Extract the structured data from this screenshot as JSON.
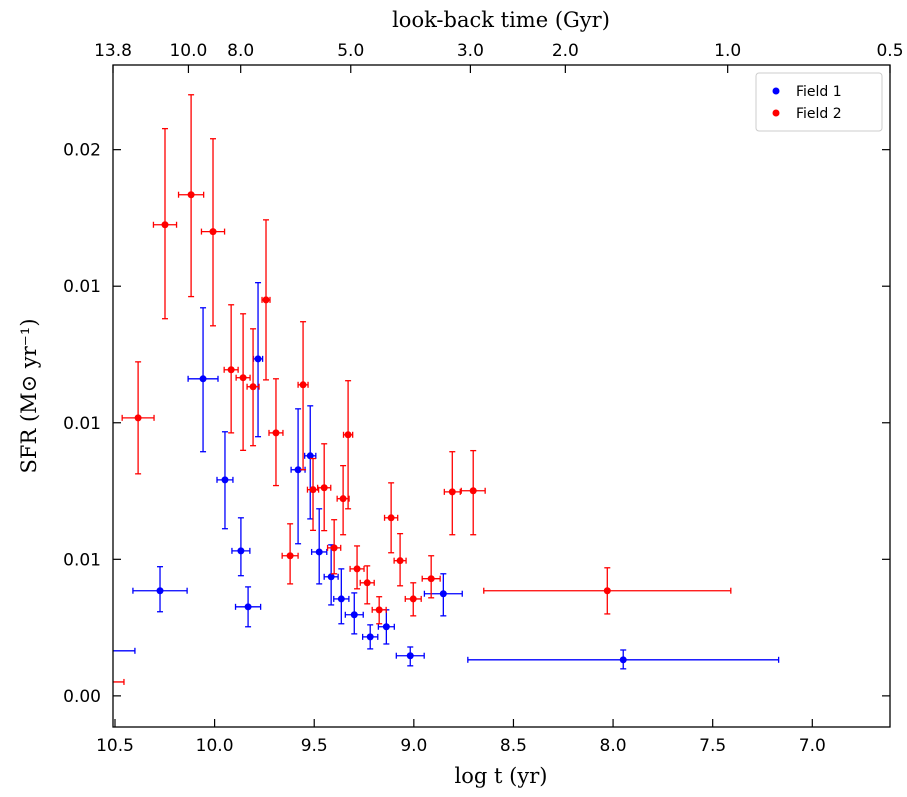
{
  "chart_data": {
    "type": "errorbar",
    "xlabel": "log t (yr)",
    "ylabel": "SFR (M⊙ yr⁻¹)",
    "x2label": "look-back time (Gyr)",
    "xlim": [
      10.51,
      6.61
    ],
    "ylim": [
      -0.00114,
      0.0231
    ],
    "xticks": [
      10.5,
      {
        "value": 10,
        "label": "10.0"
      },
      9.5,
      {
        "value": 9,
        "label": "9.0"
      },
      8.5,
      {
        "value": 8,
        "label": "8.0"
      },
      7.5,
      {
        "value": 7,
        "label": "7.0"
      }
    ],
    "yticks": [
      {
        "value": 0,
        "label": "0.00"
      },
      {
        "value": 0.005,
        "label": "0.01"
      },
      {
        "value": 0.01,
        "label": "0.01"
      },
      {
        "value": 0.015,
        "label": "0.01"
      },
      {
        "value": 0.02,
        "label": "0.02"
      }
    ],
    "x2lim": [
      13.8,
      0.5
    ],
    "x2scale": "log",
    "x2ticks": [
      13.8,
      {
        "value": 10,
        "label": "10.0"
      },
      {
        "value": 8,
        "label": "8.0"
      },
      {
        "value": 5,
        "label": "5.0"
      },
      {
        "value": 3,
        "label": "3.0"
      },
      {
        "value": 2,
        "label": "2.0"
      },
      {
        "value": 1,
        "label": "1.0"
      },
      0.5
    ],
    "legend": "upper right",
    "series": [
      {
        "name": "Field 1",
        "color": "#0000ff",
        "x": [
          10.56,
          10.274,
          10.058,
          9.948,
          9.868,
          9.832,
          9.782,
          9.581,
          9.52,
          9.475,
          9.415,
          9.364,
          9.299,
          9.219,
          9.138,
          9.018,
          8.852,
          7.949
        ],
        "values": [
          0.00165,
          0.00385,
          0.01161,
          0.00791,
          0.00531,
          0.00326,
          0.01234,
          0.00828,
          0.00879,
          0.00527,
          0.00436,
          0.00355,
          0.00297,
          0.00216,
          0.00253,
          0.00147,
          0.00374,
          0.00132
        ],
        "xerr": [
          0.16,
          0.136,
          0.075,
          0.04,
          0.045,
          0.063,
          0.023,
          0.035,
          0.028,
          0.038,
          0.035,
          0.038,
          0.045,
          0.038,
          0.04,
          0.07,
          0.095,
          0.78
        ],
        "yerr": [
          [
            0,
            0
          ],
          [
            0.00077,
            0.00088
          ],
          [
            0.00267,
            0.0026
          ],
          [
            0.00179,
            0.00176
          ],
          [
            0.00091,
            0.00121
          ],
          [
            0.00073,
            0.00073
          ],
          [
            0.00285,
            0.00279
          ],
          [
            0.00271,
            0.00223
          ],
          [
            0.00231,
            0.00183
          ],
          [
            0.00117,
            0.00158
          ],
          [
            0.00103,
            0.00117
          ],
          [
            0.00091,
            0.0011
          ],
          [
            0.0007,
            0.0008
          ],
          [
            0.00044,
            0.00044
          ],
          [
            0.00063,
            0.00062
          ],
          [
            0.00037,
            0.00032
          ],
          [
            0.00081,
            0.00073
          ],
          [
            0.00033,
            0.00036
          ]
        ]
      },
      {
        "name": "Field 2",
        "color": "#ff0000",
        "x": [
          10.53,
          10.384,
          10.249,
          10.118,
          10.008,
          9.917,
          9.857,
          9.807,
          9.742,
          9.692,
          9.621,
          9.556,
          9.506,
          9.45,
          9.4,
          9.355,
          9.33,
          9.285,
          9.234,
          9.174,
          9.114,
          9.069,
          9.003,
          8.913,
          8.807,
          8.702,
          8.029
        ],
        "values": [
          0.00051,
          0.01018,
          0.01725,
          0.01835,
          0.017,
          0.01194,
          0.01165,
          0.01132,
          0.0145,
          0.00963,
          0.00513,
          0.01139,
          0.00755,
          0.00762,
          0.00542,
          0.00722,
          0.00956,
          0.00465,
          0.00414,
          0.00315,
          0.00652,
          0.00495,
          0.00355,
          0.00429,
          0.00747,
          0.00751,
          0.00385
        ],
        "xerr": [
          0.075,
          0.08,
          0.058,
          0.063,
          0.058,
          0.035,
          0.035,
          0.03,
          0.02,
          0.035,
          0.04,
          0.025,
          0.028,
          0.033,
          0.033,
          0.03,
          0.023,
          0.035,
          0.035,
          0.035,
          0.033,
          0.03,
          0.04,
          0.045,
          0.04,
          0.06,
          0.62
        ],
        "yerr": [
          [
            0,
            0
          ],
          [
            0.00205,
            0.00205
          ],
          [
            0.00344,
            0.00352
          ],
          [
            0.00373,
            0.00366
          ],
          [
            0.00345,
            0.0034
          ],
          [
            0.00231,
            0.00238
          ],
          [
            0.00266,
            0.00234
          ],
          [
            0.00216,
            0.00212
          ],
          [
            0.00293,
            0.00293
          ],
          [
            0.00193,
            0.00198
          ],
          [
            0.00103,
            0.00117
          ],
          [
            0.00311,
            0.00231
          ],
          [
            0.00149,
            0.00114
          ],
          [
            0.00157,
            0.00161
          ],
          [
            0.00095,
            0.00103
          ],
          [
            0.00132,
            0.00121
          ],
          [
            0.00271,
            0.00198
          ],
          [
            0.00073,
            0.00084
          ],
          [
            0.00077,
            0.00062
          ],
          [
            0.00051,
            0.00048
          ],
          [
            0.00128,
            0.00128
          ],
          [
            0.00092,
            0.00099
          ],
          [
            0.00062,
            0.00059
          ],
          [
            0.0007,
            0.00084
          ],
          [
            0.00157,
            0.00147
          ],
          [
            0.00161,
            0.00147
          ],
          [
            0.00085,
            0.00084
          ]
        ]
      }
    ]
  }
}
